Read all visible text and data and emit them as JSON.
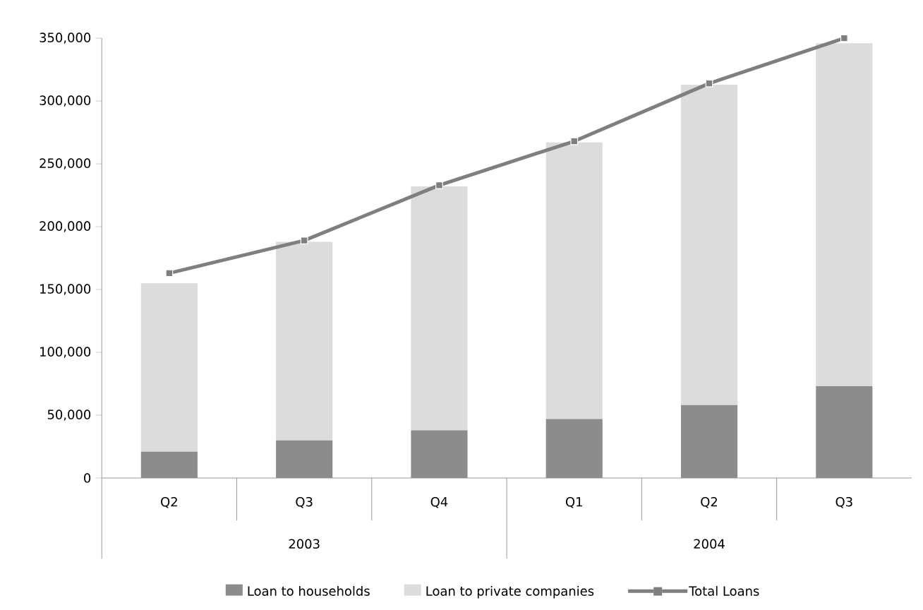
{
  "chart_data": {
    "type": "bar",
    "stacked": true,
    "categories": [
      "Q2",
      "Q3",
      "Q4",
      "Q1",
      "Q2",
      "Q3"
    ],
    "annotations": [
      "2003",
      "2004"
    ],
    "series": [
      {
        "name": "Loan to households",
        "color": "#8c8c8c",
        "values": [
          21000,
          30000,
          38000,
          47000,
          58000,
          73000
        ]
      },
      {
        "name": "Loan to private companies",
        "color": "#dcdcdc",
        "values": [
          134000,
          158000,
          194000,
          220000,
          255000,
          273000
        ]
      },
      {
        "name": "Total Loans",
        "type": "line",
        "color": "#7f7f7f",
        "marker": "square",
        "values": [
          163000,
          189000,
          233000,
          268000,
          314000,
          350000
        ]
      }
    ],
    "ylim": [
      0,
      350000
    ],
    "yticks": [
      {
        "value": 0,
        "label": "0"
      },
      {
        "value": 50000,
        "label": "50,000"
      },
      {
        "value": 100000,
        "label": "100,000"
      },
      {
        "value": 150000,
        "label": "150,000"
      },
      {
        "value": 200000,
        "label": "200,000"
      },
      {
        "value": 250000,
        "label": "250,000"
      },
      {
        "value": 300000,
        "label": "300,000"
      },
      {
        "value": 350000,
        "label": "350,000"
      }
    ],
    "grid": false,
    "legend": "bottom"
  }
}
